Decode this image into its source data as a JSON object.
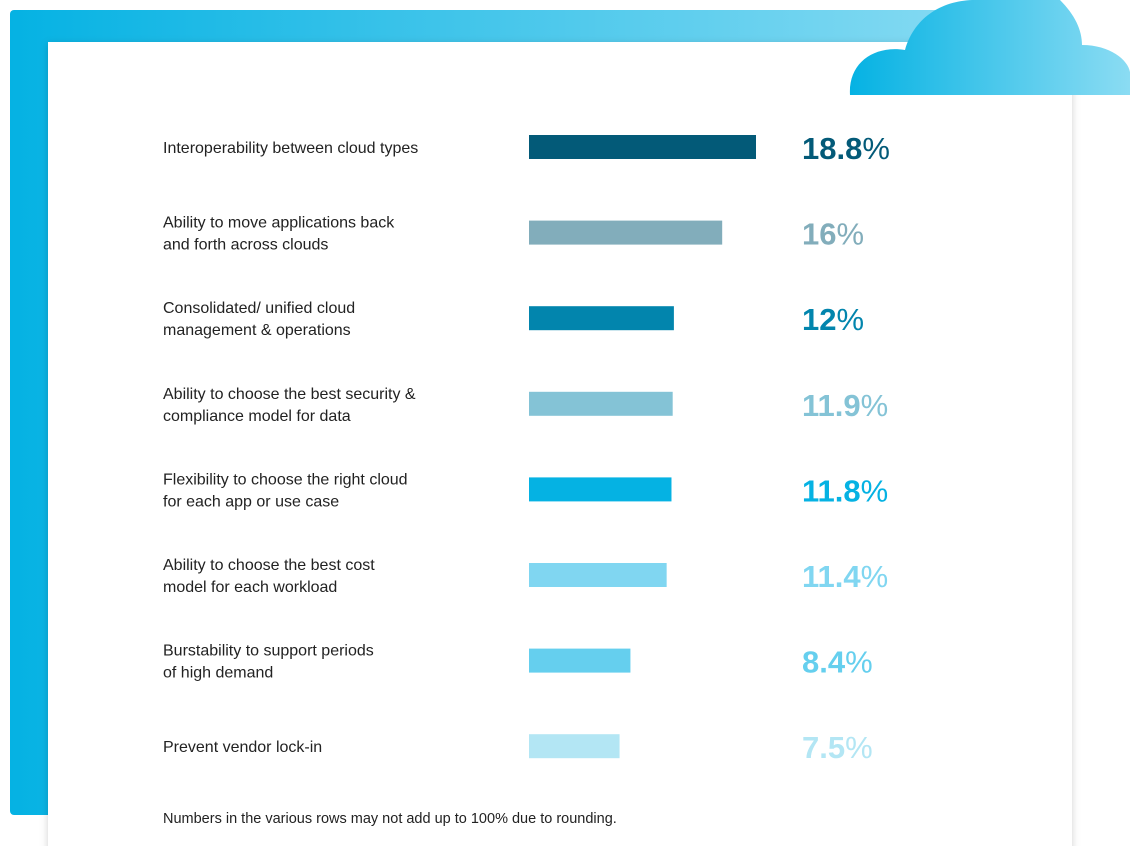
{
  "chart_data": {
    "type": "bar",
    "orientation": "horizontal",
    "categories": [
      [
        "Interoperability between cloud types"
      ],
      [
        "Ability to move applications back",
        "and forth across clouds"
      ],
      [
        "Consolidated/ unified cloud",
        "management & operations"
      ],
      [
        "Ability to choose the best security &",
        "compliance model for data"
      ],
      [
        "Flexibility to choose the right cloud",
        "for each app or use case"
      ],
      [
        "Ability to choose the best cost",
        "model for each workload"
      ],
      [
        "Burstability to support periods",
        "of high demand"
      ],
      [
        "Prevent vendor lock-in"
      ]
    ],
    "values": [
      18.8,
      16,
      12,
      11.9,
      11.8,
      11.4,
      8.4,
      7.5
    ],
    "value_labels": [
      "18.8%",
      "16%",
      "12%",
      "11.9%",
      "11.8%",
      "11.4%",
      "8.4%",
      "7.5%"
    ],
    "colors": [
      "#035a78",
      "#82adbb",
      "#0285ad",
      "#84c3d6",
      "#05b2e3",
      "#80d6f1",
      "#65cfee",
      "#b3e6f4"
    ],
    "footnote": "Numbers in the various rows may not add up to 100% due to rounding."
  }
}
